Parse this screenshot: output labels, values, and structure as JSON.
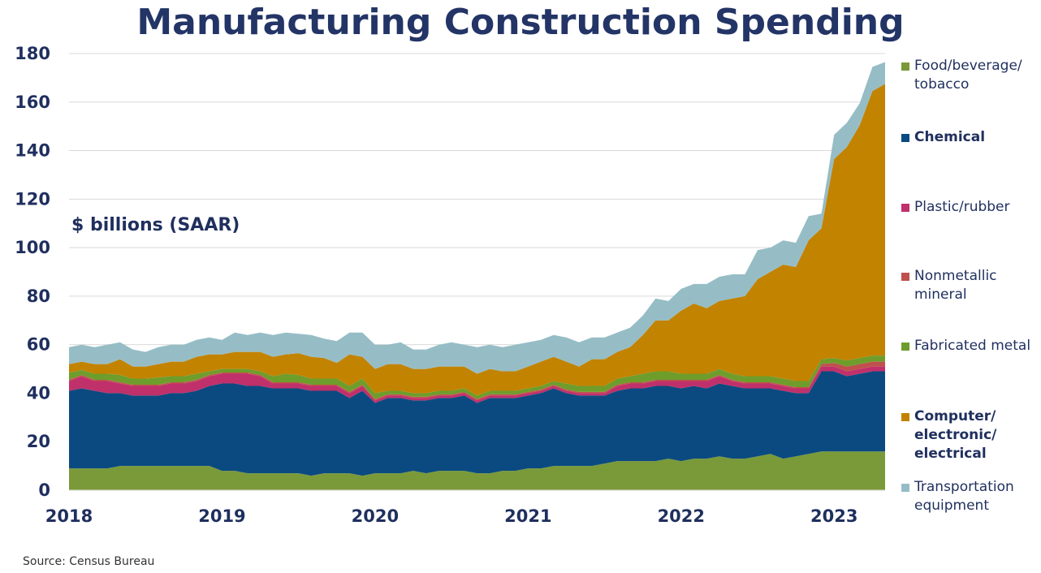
{
  "title": "Manufacturing Construction Spending",
  "source": "Source:  Census Bureau",
  "chart_data": {
    "type": "area",
    "stacked": true,
    "ylabel": "$ billions (SAAR)",
    "xlabel": "",
    "ylim": [
      0,
      180
    ],
    "yticks": [
      0,
      20,
      40,
      60,
      80,
      100,
      120,
      140,
      160,
      180
    ],
    "xticks": [
      "2018",
      "2019",
      "2020",
      "2021",
      "2022",
      "2023"
    ],
    "grid": true,
    "legend_position": "right",
    "x": [
      2018.0,
      2018.083,
      2018.167,
      2018.25,
      2018.333,
      2018.417,
      2018.5,
      2018.583,
      2018.667,
      2018.75,
      2018.833,
      2018.917,
      2019.0,
      2019.083,
      2019.167,
      2019.25,
      2019.333,
      2019.417,
      2019.5,
      2019.583,
      2019.667,
      2019.75,
      2019.833,
      2019.917,
      2020.0,
      2020.083,
      2020.167,
      2020.25,
      2020.333,
      2020.417,
      2020.5,
      2020.583,
      2020.667,
      2020.75,
      2020.833,
      2020.917,
      2021.0,
      2021.083,
      2021.167,
      2021.25,
      2021.333,
      2021.417,
      2021.5,
      2021.583,
      2021.667,
      2021.75,
      2021.833,
      2021.917,
      2022.0,
      2022.083,
      2022.167,
      2022.25,
      2022.333,
      2022.417,
      2022.5,
      2022.583,
      2022.667,
      2022.75,
      2022.833,
      2022.917,
      2023.0,
      2023.083,
      2023.167,
      2023.25,
      2023.333
    ],
    "series": [
      {
        "name": "Food/beverage/ tobacco",
        "color": "#7a9a3a",
        "values": [
          9,
          9,
          9,
          9,
          10,
          10,
          10,
          10,
          10,
          10,
          10,
          10,
          8,
          8,
          7,
          7,
          7,
          7,
          7,
          6,
          7,
          7,
          7,
          6,
          7,
          7,
          7,
          8,
          7,
          8,
          8,
          8,
          7,
          7,
          8,
          8,
          9,
          9,
          10,
          10,
          10,
          10,
          11,
          12,
          12,
          12,
          12,
          13,
          12,
          13,
          13,
          14,
          13,
          13,
          14,
          15,
          13,
          14,
          15,
          16,
          16,
          16,
          16,
          16,
          16
        ]
      },
      {
        "name": "Chemical",
        "color": "#0b4a80",
        "values": [
          32,
          33,
          32,
          31,
          30,
          29,
          29,
          29,
          30,
          30,
          31,
          33,
          36,
          36,
          36,
          36,
          35,
          35,
          35,
          35,
          34,
          34,
          31,
          35,
          29,
          31,
          31,
          29,
          30,
          30,
          30,
          31,
          29,
          31,
          30,
          30,
          30,
          31,
          32,
          30,
          29,
          29,
          28,
          29,
          30,
          30,
          31,
          30,
          30,
          30,
          29,
          30,
          30,
          29,
          28,
          27,
          28,
          26,
          25,
          33,
          33,
          31,
          32,
          33,
          33
        ]
      },
      {
        "name": "Plastic/rubber",
        "color": "#c0306a",
        "values": [
          4,
          5,
          4,
          5,
          4,
          4,
          4,
          4,
          4,
          4,
          4,
          4,
          4,
          4,
          5,
          4,
          2,
          2,
          2,
          2,
          2,
          2,
          2,
          2,
          1,
          1,
          1,
          1,
          1,
          1,
          1,
          1,
          1,
          1,
          1,
          1,
          1,
          1,
          1,
          1,
          1,
          1,
          1,
          2,
          2,
          2,
          2,
          2,
          3,
          2,
          3,
          3,
          2,
          2,
          2,
          2,
          2,
          2,
          2,
          2,
          2,
          2,
          2,
          2,
          2
        ]
      },
      {
        "name": "Nonmetallic mineral",
        "color": "#c0504d",
        "values": [
          0.5,
          0.5,
          0.5,
          0.5,
          0.5,
          0.5,
          0.5,
          0.5,
          0.5,
          0.5,
          0.5,
          0.5,
          0.5,
          0.5,
          0.5,
          0.5,
          0.5,
          0.5,
          0.5,
          0.5,
          0.5,
          0.5,
          0.5,
          0.5,
          0.5,
          0.5,
          0.5,
          0.5,
          0.5,
          0.5,
          0.5,
          0.5,
          0.5,
          0.5,
          0.5,
          0.5,
          0.5,
          0.5,
          0.5,
          0.5,
          0.5,
          0.5,
          0.5,
          0.5,
          0.5,
          0.5,
          0.5,
          0.5,
          0.5,
          0.5,
          0.5,
          0.5,
          0.5,
          0.5,
          0.5,
          0.5,
          0.5,
          0.5,
          0.5,
          1,
          1.5,
          2,
          2,
          2,
          2
        ]
      },
      {
        "name": "Fabricated metal",
        "color": "#6e9d2c",
        "values": [
          3,
          2,
          2.5,
          2.5,
          3,
          2.5,
          2.5,
          3,
          2.5,
          2.5,
          2.5,
          1.5,
          1.5,
          1.5,
          1.5,
          1.5,
          2.5,
          3.5,
          3,
          2.5,
          2.5,
          2.5,
          2.5,
          2.5,
          2.5,
          1.5,
          1.5,
          1.5,
          1.5,
          1.5,
          1.5,
          1.5,
          1.5,
          1.5,
          1.5,
          1.5,
          1.5,
          1.5,
          1.5,
          2.5,
          2.5,
          2.5,
          2.5,
          2.5,
          2.5,
          3.5,
          3.5,
          3.5,
          2.5,
          2.5,
          2.5,
          2.5,
          2.5,
          2.5,
          2.5,
          2.5,
          2.5,
          2.5,
          2.5,
          2,
          2,
          2.5,
          2.5,
          2.5,
          2.5
        ]
      },
      {
        "name": "Computer/ electronic/ electrical",
        "color": "#c28300",
        "values": [
          3.5,
          3.5,
          4,
          4,
          6.5,
          5,
          5,
          5.5,
          6,
          6,
          7,
          7,
          6,
          7,
          7,
          8,
          8,
          8,
          9,
          9,
          8.5,
          6.5,
          13,
          9,
          10,
          11,
          11,
          10,
          10,
          10,
          10,
          9,
          9,
          9,
          8,
          8,
          9,
          10,
          10,
          9,
          8,
          11,
          11,
          11,
          12,
          16,
          21,
          21,
          26,
          29,
          27,
          28,
          31,
          33,
          40,
          43,
          47,
          47,
          58,
          54,
          82,
          88,
          96,
          109,
          112
        ]
      },
      {
        "name": "Transportation equipment",
        "color": "#96bdc6",
        "values": [
          7,
          7,
          7,
          8,
          7,
          7,
          6,
          7,
          7,
          7,
          7,
          7,
          6,
          8,
          7,
          8,
          9,
          9,
          8,
          9,
          8,
          9,
          9,
          10,
          10,
          8,
          9,
          8,
          8,
          9,
          10,
          9,
          11,
          10,
          10,
          11,
          10,
          9,
          9,
          10,
          10,
          9,
          9,
          8,
          8,
          8,
          9,
          8,
          9,
          8,
          10,
          10,
          10,
          9,
          12,
          10,
          10,
          10,
          10,
          6,
          10,
          10,
          9,
          10,
          9
        ]
      }
    ]
  }
}
